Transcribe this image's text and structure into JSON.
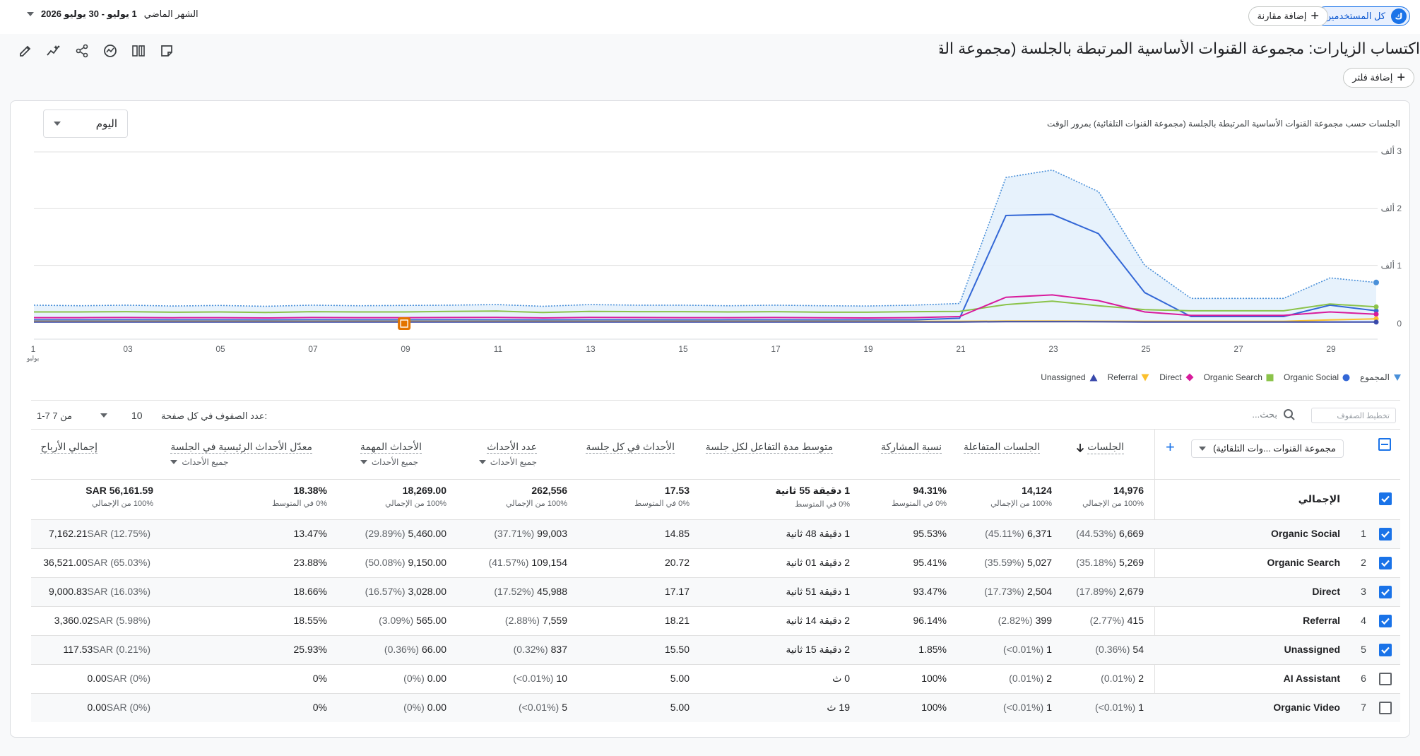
{
  "topbar": {
    "all_users_chip": "كل المستخدمين",
    "all_users_avatar": "ك",
    "add_comparison": "إضافة مقارنة",
    "date_prefix": "الشهر الماضي",
    "date_range": "1 يوليو - 30 يوليو 2026"
  },
  "header": {
    "title": "اكتساب الزيارات: مجموعة القنوات الأساسية المرتبطة بالجلسة (مجموعة القنوات التلقائية)",
    "add_filter": "إضافة فلتر"
  },
  "chart_controls": {
    "granularity": "اليوم"
  },
  "chart_data": {
    "type": "line",
    "title": "الجلسات حسب مجموعة القنوات الأساسية المرتبطة بالجلسة (مجموعة القنوات التلقائية) بمرور الوقت",
    "y_tick_labels": [
      "3 ألف",
      "2 ألف",
      "1 ألف",
      "0"
    ],
    "ylim": [
      0,
      3000
    ],
    "x": [
      1,
      2,
      3,
      4,
      5,
      6,
      7,
      8,
      9,
      10,
      11,
      12,
      13,
      14,
      15,
      16,
      17,
      18,
      19,
      20,
      21,
      22,
      23,
      24,
      25,
      26,
      27,
      28,
      29,
      30
    ],
    "x_tick_labels": [
      "1",
      "03",
      "05",
      "07",
      "09",
      "11",
      "13",
      "15",
      "17",
      "19",
      "21",
      "23",
      "25",
      "27",
      "29"
    ],
    "x_month_label": "يوليو",
    "annotation_day": 9,
    "series": [
      {
        "name": "المجموع",
        "color": "#4a90d9",
        "style": "dotted-area",
        "values": [
          300,
          290,
          300,
          285,
          295,
          280,
          300,
          290,
          295,
          300,
          310,
          280,
          310,
          300,
          300,
          290,
          300,
          290,
          285,
          300,
          330,
          2550,
          2680,
          2300,
          1000,
          420,
          420,
          420,
          780,
          700
        ]
      },
      {
        "name": "Organic Social",
        "color": "#3367d6",
        "values": [
          40,
          40,
          42,
          40,
          40,
          38,
          42,
          40,
          40,
          42,
          40,
          38,
          40,
          40,
          38,
          40,
          40,
          38,
          40,
          40,
          70,
          1880,
          1900,
          1560,
          520,
          100,
          100,
          100,
          300,
          200
        ]
      },
      {
        "name": "Organic Search",
        "color": "#8bc34a",
        "values": [
          180,
          180,
          185,
          175,
          180,
          170,
          185,
          180,
          180,
          190,
          195,
          170,
          190,
          185,
          185,
          180,
          185,
          175,
          175,
          185,
          190,
          310,
          370,
          290,
          220,
          200,
          200,
          200,
          320,
          270
        ]
      },
      {
        "name": "Direct",
        "color": "#d81b9c",
        "values": [
          80,
          80,
          82,
          78,
          80,
          75,
          82,
          80,
          80,
          82,
          85,
          75,
          85,
          82,
          80,
          80,
          82,
          78,
          75,
          80,
          100,
          440,
          480,
          380,
          180,
          120,
          120,
          120,
          180,
          140
        ]
      },
      {
        "name": "Referral",
        "color": "#fbc02d",
        "values": [
          15,
          15,
          15,
          15,
          15,
          15,
          15,
          15,
          15,
          15,
          15,
          15,
          15,
          15,
          15,
          15,
          15,
          15,
          15,
          15,
          15,
          20,
          20,
          18,
          15,
          15,
          15,
          15,
          40,
          60
        ]
      },
      {
        "name": "Unassigned",
        "color": "#3949ab",
        "values": [
          2,
          2,
          2,
          2,
          2,
          2,
          2,
          2,
          2,
          2,
          2,
          2,
          2,
          2,
          2,
          2,
          2,
          2,
          2,
          2,
          2,
          10,
          10,
          8,
          3,
          2,
          2,
          2,
          2,
          2
        ]
      }
    ]
  },
  "table": {
    "search_placeholder": "بحث...",
    "filter_placeholder": "تخطيط الصفوف",
    "rows_per_page_label": "عدد الصفوف في كل صفحة:",
    "rows_per_page": "10",
    "pagination": "1-7 من 7",
    "dimension": "مجموعة القنوات ...وات التلقائية)",
    "headers": {
      "sessions": "الجلسات",
      "engaged": "الجلسات المتفاعلة",
      "engagement_rate": "نسبة المشاركة",
      "avg_time": "متوسط مدة التفاعل لكل جلسة",
      "events_per_session": "الأحداث في كل جلسة",
      "event_count": "عدد الأحداث",
      "event_count_sub": "جميع الأحداث",
      "key_events": "الأحداث المهمة",
      "key_events_sub": "جميع الأحداث",
      "key_rate": "معدّل الأحداث الرئيسية في الجلسة",
      "key_rate_sub": "جميع الأحداث",
      "revenue": "إجمالي الأرباح"
    },
    "totals": {
      "label": "الإجمالي",
      "sessions": "14,976",
      "sessions_sub": "100% من الإجمالي",
      "engaged": "14,124",
      "engaged_sub": "100% من الإجمالي",
      "engagement_rate": "94.31%",
      "engagement_rate_sub": "0% في المتوسط",
      "avg_time": "1 دقيقة 55 ثانية",
      "avg_time_sub": "0% في المتوسط",
      "events_per_session": "17.53",
      "events_per_session_sub": "0% في المتوسط",
      "event_count": "262,556",
      "event_count_sub": "100% من الإجمالي",
      "key_events": "18,269.00",
      "key_events_sub": "100% من الإجمالي",
      "key_rate": "18.38%",
      "key_rate_sub": "0% في المتوسط",
      "revenue": "SAR 56,161.59",
      "revenue_sub": "100% من الإجمالي"
    },
    "rows": [
      {
        "num": "1",
        "label": "Organic Social",
        "checked": true,
        "sessions": "6,669",
        "sessions_pct": "(44.53%)",
        "engaged": "6,371",
        "engaged_pct": "(45.11%)",
        "engagement_rate": "95.53%",
        "avg_time": "1 دقيقة 48 ثانية",
        "events_per_session": "14.85",
        "event_count": "99,003",
        "event_count_pct": "(37.71%)",
        "key_events": "5,460.00",
        "key_events_pct": "(29.89%)",
        "key_rate": "13.47%",
        "revenue": "7,162.21",
        "revenue_pct": "SAR (12.75%)"
      },
      {
        "num": "2",
        "label": "Organic Search",
        "checked": true,
        "sessions": "5,269",
        "sessions_pct": "(35.18%)",
        "engaged": "5,027",
        "engaged_pct": "(35.59%)",
        "engagement_rate": "95.41%",
        "avg_time": "2 دقيقة 01 ثانية",
        "events_per_session": "20.72",
        "event_count": "109,154",
        "event_count_pct": "(41.57%)",
        "key_events": "9,150.00",
        "key_events_pct": "(50.08%)",
        "key_rate": "23.88%",
        "revenue": "36,521.00",
        "revenue_pct": "SAR (65.03%)"
      },
      {
        "num": "3",
        "label": "Direct",
        "checked": true,
        "sessions": "2,679",
        "sessions_pct": "(17.89%)",
        "engaged": "2,504",
        "engaged_pct": "(17.73%)",
        "engagement_rate": "93.47%",
        "avg_time": "1 دقيقة 51 ثانية",
        "events_per_session": "17.17",
        "event_count": "45,988",
        "event_count_pct": "(17.52%)",
        "key_events": "3,028.00",
        "key_events_pct": "(16.57%)",
        "key_rate": "18.66%",
        "revenue": "9,000.83",
        "revenue_pct": "SAR (16.03%)"
      },
      {
        "num": "4",
        "label": "Referral",
        "checked": true,
        "sessions": "415",
        "sessions_pct": "(2.77%)",
        "engaged": "399",
        "engaged_pct": "(2.82%)",
        "engagement_rate": "96.14%",
        "avg_time": "2 دقيقة 14 ثانية",
        "events_per_session": "18.21",
        "event_count": "7,559",
        "event_count_pct": "(2.88%)",
        "key_events": "565.00",
        "key_events_pct": "(3.09%)",
        "key_rate": "18.55%",
        "revenue": "3,360.02",
        "revenue_pct": "SAR (5.98%)"
      },
      {
        "num": "5",
        "label": "Unassigned",
        "checked": true,
        "sessions": "54",
        "sessions_pct": "(0.36%)",
        "engaged": "1",
        "engaged_pct": "(0.01%>)",
        "engagement_rate": "1.85%",
        "avg_time": "2 دقيقة 15 ثانية",
        "events_per_session": "15.50",
        "event_count": "837",
        "event_count_pct": "(0.32%)",
        "key_events": "66.00",
        "key_events_pct": "(0.36%)",
        "key_rate": "25.93%",
        "revenue": "117.53",
        "revenue_pct": "SAR (0.21%)"
      },
      {
        "num": "6",
        "label": "AI Assistant",
        "checked": false,
        "sessions": "2",
        "sessions_pct": "(0.01%)",
        "engaged": "2",
        "engaged_pct": "(0.01%)",
        "engagement_rate": "100%",
        "avg_time": "0 ث",
        "events_per_session": "5.00",
        "event_count": "10",
        "event_count_pct": "(0.01%>)",
        "key_events": "0.00",
        "key_events_pct": "(0%)",
        "key_rate": "0%",
        "revenue": "0.00",
        "revenue_pct": "SAR (0%)"
      },
      {
        "num": "7",
        "label": "Organic Video",
        "checked": false,
        "sessions": "1",
        "sessions_pct": "(0.01%>)",
        "engaged": "1",
        "engaged_pct": "(0.01%>)",
        "engagement_rate": "100%",
        "avg_time": "19 ث",
        "events_per_session": "5.00",
        "event_count": "5",
        "event_count_pct": "(0.01%>)",
        "key_events": "0.00",
        "key_events_pct": "(0%)",
        "key_rate": "0%",
        "revenue": "0.00",
        "revenue_pct": "SAR (0%)"
      }
    ]
  },
  "colors": {
    "accent": "#1a73e8",
    "total": "#4a90d9",
    "organic_social": "#3367d6",
    "organic_search": "#8bc34a",
    "direct": "#d81b9c",
    "referral": "#fbc02d",
    "unassigned": "#3949ab"
  }
}
